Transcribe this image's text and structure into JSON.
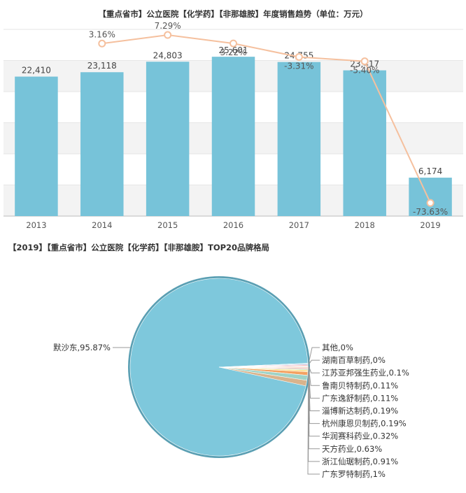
{
  "chart_data": [
    {
      "type": "bar",
      "title": "【重点省市】公立医院【化学药】【非那雄胺】年度销售趋势（单位：万元）",
      "categories": [
        "2013",
        "2014",
        "2015",
        "2016",
        "2017",
        "2018",
        "2019"
      ],
      "values": [
        22410,
        23118,
        24803,
        25601,
        24755,
        23417,
        6174
      ],
      "value_labels": [
        "22,410",
        "23,118",
        "24,803",
        "25,601",
        "24,755",
        "23,417",
        "6,174"
      ],
      "growth": [
        null,
        3.16,
        7.29,
        3.22,
        -3.31,
        -5.4,
        -73.63
      ],
      "growth_labels": [
        "",
        "3.16%",
        "7.29%",
        "3.22%",
        "-3.31%",
        "-5.40%",
        "-73.63%"
      ],
      "bar_color": "#77c3d9",
      "line_color": "#f5c09e",
      "ylim": [
        0,
        30000
      ],
      "growth_range": [
        -80,
        10
      ],
      "grid": "banded"
    },
    {
      "type": "pie",
      "title": "【2019】【重点省市】公立医院【化学药】【非那雄胺】TOP20品牌格局",
      "labels": [
        "默沙东,95.87%",
        "其他,0%",
        "湖南百草制药,0%",
        "江苏亚邦强生药业,0.1%",
        "鲁南贝特制药,0.11%",
        "广东逸舒制药,0.11%",
        "淄博新达制药,0.19%",
        "杭州康恩贝制药,0.19%",
        "华润赛科药业,0.32%",
        "天方药业,0.63%",
        "浙江仙琚制药,0.91%",
        "广东罗特制药,1%"
      ],
      "values": [
        95.87,
        0,
        0,
        0.1,
        0.11,
        0.11,
        0.19,
        0.19,
        0.32,
        0.63,
        0.91,
        1
      ],
      "colors": [
        "#7ec8dc",
        "#a9d8e6",
        "#c8a9d8",
        "#f28b82",
        "#e6e6e6",
        "#f7c59f",
        "#f3a7b0",
        "#b6d7a8",
        "#fbe08a",
        "#f4a261",
        "#9fd3c7",
        "#d9b38c"
      ]
    }
  ]
}
